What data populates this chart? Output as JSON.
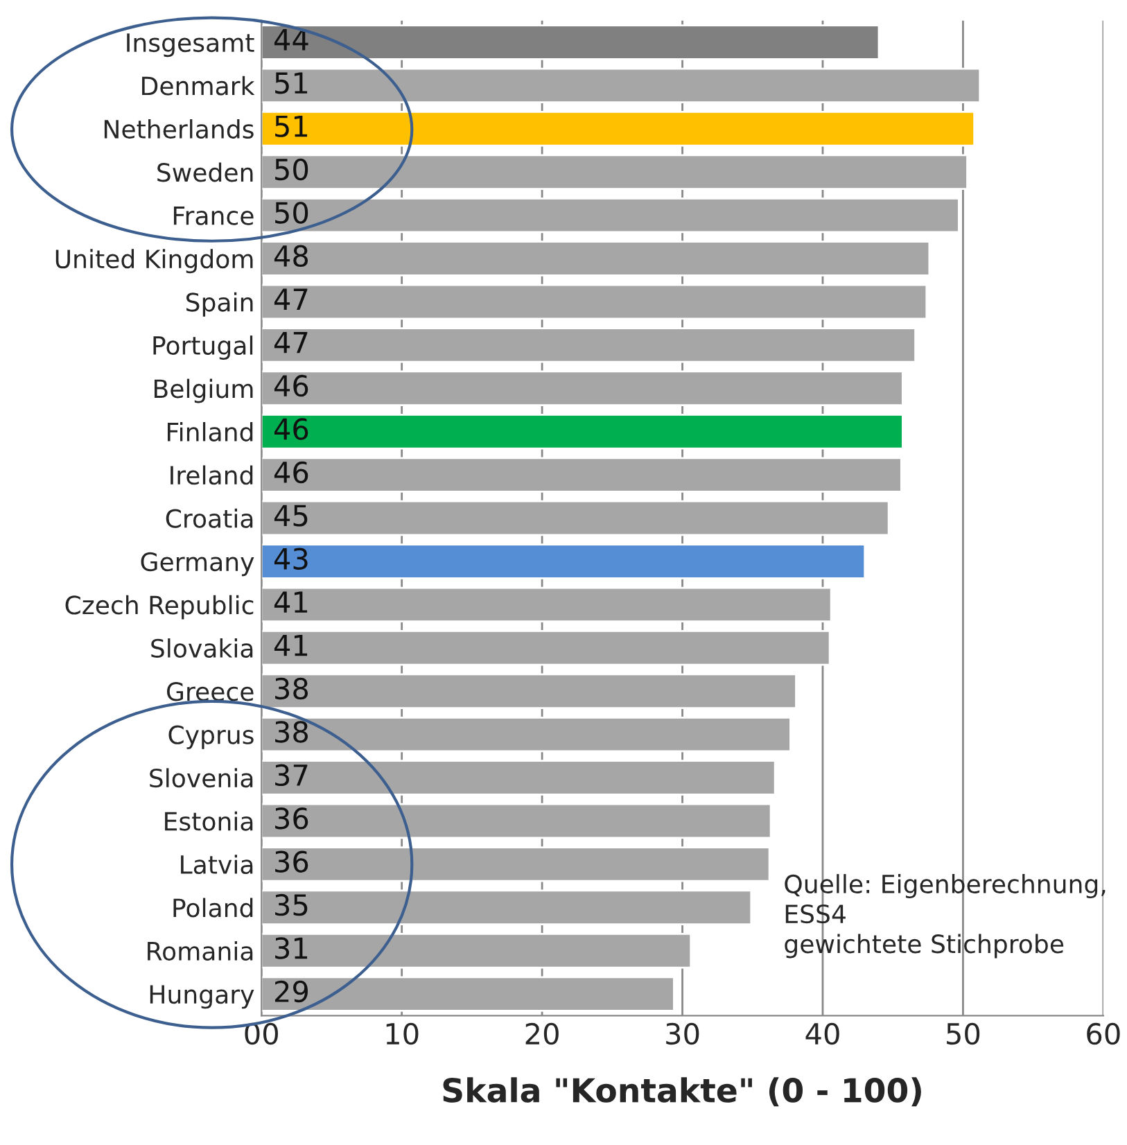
{
  "chart_data": {
    "type": "bar",
    "orientation": "horizontal",
    "xlabel": "Skala \"Kontakte\" (0 - 100)",
    "categories": [
      "Insgesamt",
      "Denmark",
      "Netherlands",
      "Sweden",
      "France",
      "United Kingdom",
      "Spain",
      "Portugal",
      "Belgium",
      "Finland",
      "Ireland",
      "Croatia",
      "Germany",
      "Czech Republic",
      "Slovakia",
      "Greece",
      "Cyprus",
      "Slovenia",
      "Estonia",
      "Latvia",
      "Poland",
      "Romania",
      "Hungary"
    ],
    "values": [
      44.0,
      51.2,
      50.8,
      50.3,
      49.7,
      47.6,
      47.4,
      46.6,
      45.7,
      45.7,
      45.6,
      44.7,
      43.0,
      40.6,
      40.5,
      38.1,
      37.7,
      36.6,
      36.3,
      36.2,
      34.9,
      30.6,
      29.4
    ],
    "value_labels": [
      "44",
      "51",
      "51",
      "50",
      "50",
      "48",
      "47",
      "47",
      "46",
      "46",
      "46",
      "45",
      "43",
      "41",
      "41",
      "38",
      "38",
      "37",
      "36",
      "36",
      "35",
      "31",
      "29"
    ],
    "colors": [
      "#808080",
      "#a6a6a6",
      "#ffc000",
      "#a6a6a6",
      "#a6a6a6",
      "#a6a6a6",
      "#a6a6a6",
      "#a6a6a6",
      "#a6a6a6",
      "#00b050",
      "#a6a6a6",
      "#a6a6a6",
      "#558ed5",
      "#a6a6a6",
      "#a6a6a6",
      "#a6a6a6",
      "#a6a6a6",
      "#a6a6a6",
      "#a6a6a6",
      "#a6a6a6",
      "#a6a6a6",
      "#a6a6a6",
      "#a6a6a6"
    ],
    "xlim": [
      0,
      60
    ],
    "xticks": [
      {
        "value": 0,
        "label": "00"
      },
      10,
      20,
      30,
      40,
      50,
      60
    ],
    "grid": "x",
    "annotations": [
      "Quelle: Eigenberechnung,\nESS4\ngewichtete Stichprobe"
    ]
  }
}
